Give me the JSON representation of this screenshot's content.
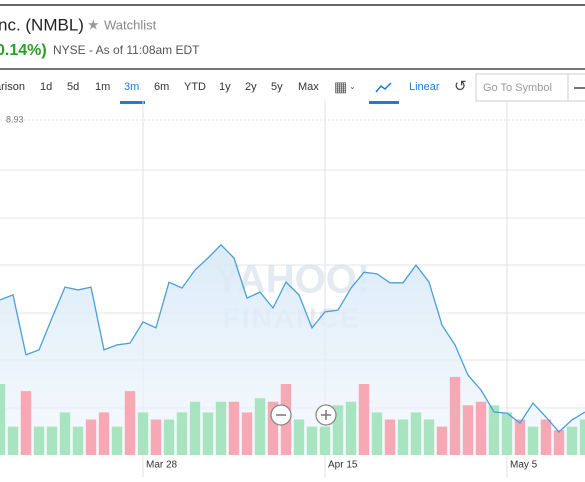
{
  "header": {
    "title": "nc. (NMBL)",
    "watchlist": "Watchlist",
    "change": "0.14%)",
    "exchange": "NYSE - As of 11:08am EDT"
  },
  "toolbar": {
    "buttons": [
      "arison",
      "1d",
      "5d",
      "1m",
      "3m",
      "6m",
      "YTD",
      "1y",
      "2y",
      "5y",
      "Max"
    ],
    "active": "3m",
    "scale": "Linear",
    "search_placeholder": "Go To Symbol"
  },
  "chart_data": {
    "type": "line",
    "price_label": "8.93",
    "watermark": [
      "YAHOO!",
      "FINANCE"
    ],
    "categories": [
      null,
      null,
      null,
      null,
      null,
      null,
      null,
      null,
      null,
      null,
      null,
      "Mar 28",
      null,
      null,
      null,
      null,
      null,
      null,
      null,
      null,
      null,
      null,
      null,
      null,
      null,
      "Apr 15",
      null,
      null,
      null,
      null,
      null,
      null,
      null,
      null,
      null,
      null,
      null,
      null,
      null,
      "May 5",
      null,
      null,
      null,
      null,
      null,
      null
    ],
    "ylim": [
      0,
      100
    ],
    "series": [
      {
        "name": "NMBL",
        "color": "#4a9fd8",
        "values": [
          43.7,
          45.1,
          28.2,
          29.6,
          38.6,
          47.3,
          46.5,
          47.3,
          29.6,
          31.0,
          31.5,
          37.5,
          35.8,
          48.7,
          47.0,
          52.1,
          55.5,
          59.2,
          55.5,
          44.2,
          45.9,
          41.4,
          48.7,
          45.1,
          35.8,
          40.3,
          40.8,
          47.0,
          51.5,
          51.0,
          48.5,
          48.5,
          53.5,
          48.7,
          36.6,
          31.0,
          22.5,
          18.3,
          12.1,
          11.8,
          9.0,
          14.6,
          10.7,
          6.5,
          9.9,
          12.1
        ]
      }
    ],
    "volume": {
      "ylim": [
        0,
        100
      ],
      "values": [
        20,
        8,
        18,
        8,
        8,
        12,
        8,
        10,
        12,
        8,
        18,
        12,
        10,
        10,
        12,
        15,
        12,
        15,
        15,
        12,
        16,
        15,
        20,
        10,
        8,
        8,
        14,
        15,
        20,
        12,
        10,
        10,
        12,
        10,
        8,
        22,
        14,
        15,
        14,
        12,
        10,
        8,
        10,
        7,
        8,
        10
      ],
      "colors": [
        "#a8e4c0",
        "#a8e4c0",
        "#f6a9b4",
        "#a8e4c0",
        "#a8e4c0",
        "#a8e4c0",
        "#a8e4c0",
        "#f6a9b4",
        "#f6a9b4",
        "#a8e4c0",
        "#f6a9b4",
        "#a8e4c0",
        "#f6a9b4",
        "#a8e4c0",
        "#a8e4c0",
        "#a8e4c0",
        "#a8e4c0",
        "#a8e4c0",
        "#f6a9b4",
        "#f6a9b4",
        "#a8e4c0",
        "#f6a9b4",
        "#f6a9b4",
        "#a8e4c0",
        "#a8e4c0",
        "#a8e4c0",
        "#a8e4c0",
        "#a8e4c0",
        "#f6a9b4",
        "#a8e4c0",
        "#f6a9b4",
        "#a8e4c0",
        "#a8e4c0",
        "#a8e4c0",
        "#f6a9b4",
        "#f6a9b4",
        "#f6a9b4",
        "#f6a9b4",
        "#a8e4c0",
        "#a8e4c0",
        "#f6a9b4",
        "#a8e4c0",
        "#f6a9b4",
        "#f6a9b4",
        "#a8e4c0",
        "#a8e4c0"
      ]
    }
  }
}
